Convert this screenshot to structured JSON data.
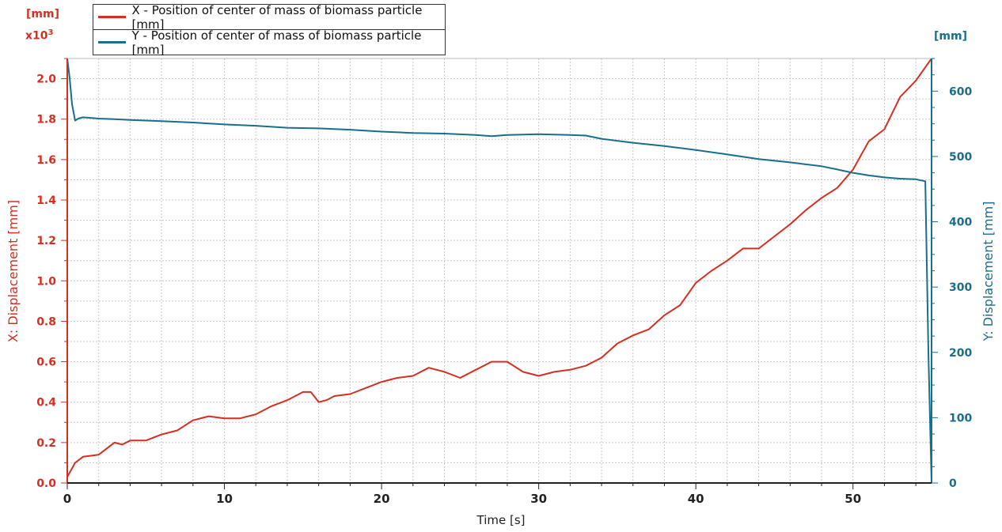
{
  "colors": {
    "x_series": "#d62f22",
    "y_series": "#176f8c",
    "grid": "#c8c8c8",
    "axis": "#222222"
  },
  "left_unit": "[mm]",
  "left_multiplier": "x10",
  "left_multiplier_exp": "3",
  "right_unit": "[mm]",
  "chart_data": {
    "type": "line",
    "xlabel": "Time [s]",
    "ylabel_left": "X: Displacement [mm]",
    "ylabel_right": "Y: Displacement [mm]",
    "xlim": [
      0,
      55
    ],
    "ylim_left": [
      0,
      2.1
    ],
    "ylim_right": [
      0,
      650
    ],
    "x_ticks": [
      0,
      10,
      20,
      30,
      40,
      50
    ],
    "y_left_ticks": [
      "0.0",
      "0.2",
      "0.4",
      "0.6",
      "0.8",
      "1.0",
      "1.2",
      "1.4",
      "1.6",
      "1.8",
      "2.0"
    ],
    "y_right_ticks": [
      0,
      100,
      200,
      300,
      400,
      500,
      600
    ],
    "grid": true,
    "legend_position": "top-left",
    "series": [
      {
        "name": "X - Position of center of mass of biomass particle [mm]",
        "axis": "left",
        "x": [
          0,
          0.5,
          1,
          2,
          3,
          3.5,
          4,
          5,
          6,
          7,
          8,
          9,
          10,
          11,
          12,
          13,
          14,
          15,
          15.5,
          16,
          16.5,
          17,
          18,
          19,
          20,
          21,
          22,
          23,
          24,
          25,
          26,
          27,
          28,
          29,
          30,
          31,
          32,
          33,
          34,
          35,
          36,
          37,
          38,
          39,
          40,
          41,
          42,
          43,
          44,
          45,
          46,
          47,
          48,
          49,
          50,
          51,
          52,
          53,
          54,
          55
        ],
        "y": [
          0.03,
          0.1,
          0.13,
          0.14,
          0.2,
          0.19,
          0.21,
          0.21,
          0.24,
          0.26,
          0.31,
          0.33,
          0.32,
          0.32,
          0.34,
          0.38,
          0.41,
          0.45,
          0.45,
          0.4,
          0.41,
          0.43,
          0.44,
          0.47,
          0.5,
          0.52,
          0.53,
          0.57,
          0.55,
          0.52,
          0.56,
          0.6,
          0.6,
          0.55,
          0.53,
          0.55,
          0.56,
          0.58,
          0.62,
          0.69,
          0.73,
          0.76,
          0.83,
          0.88,
          0.99,
          1.05,
          1.1,
          1.16,
          1.16,
          1.22,
          1.28,
          1.35,
          1.41,
          1.46,
          1.55,
          1.69,
          1.75,
          1.91,
          1.99,
          2.1
        ]
      },
      {
        "name": "Y - Position of center of mass of biomass particle [mm]",
        "axis": "right",
        "x": [
          0,
          0.15,
          0.3,
          0.5,
          0.7,
          1,
          2,
          3,
          4,
          5,
          6,
          8,
          10,
          12,
          14,
          16,
          18,
          20,
          22,
          24,
          26,
          27,
          28,
          30,
          32,
          33,
          34,
          36,
          38,
          40,
          42,
          44,
          46,
          48,
          49,
          50,
          51,
          52,
          53,
          54,
          54.6,
          54.8,
          55
        ],
        "y": [
          650,
          620,
          580,
          555,
          558,
          560,
          558,
          557,
          556,
          555,
          554,
          552,
          549,
          547,
          544,
          543,
          541,
          538,
          536,
          535,
          533,
          531,
          533,
          534,
          533,
          532,
          527,
          521,
          516,
          510,
          503,
          496,
          491,
          485,
          480,
          475,
          471,
          468,
          466,
          465,
          462,
          200,
          0
        ]
      }
    ]
  }
}
